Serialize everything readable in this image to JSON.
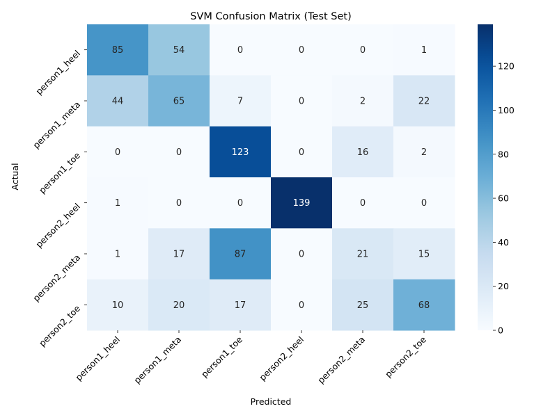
{
  "chart_data": {
    "type": "heatmap",
    "title": "SVM Confusion Matrix (Test Set)",
    "xlabel": "Predicted",
    "ylabel": "Actual",
    "x_categories": [
      "person1_heel",
      "person1_meta",
      "person1_toe",
      "person2_heel",
      "person2_meta",
      "person2_toe"
    ],
    "y_categories": [
      "person1_heel",
      "person1_meta",
      "person1_toe",
      "person2_heel",
      "person2_meta",
      "person2_toe"
    ],
    "values": [
      [
        85,
        54,
        0,
        0,
        0,
        1
      ],
      [
        44,
        65,
        7,
        0,
        2,
        22
      ],
      [
        0,
        0,
        123,
        0,
        16,
        2
      ],
      [
        1,
        0,
        0,
        139,
        0,
        0
      ],
      [
        1,
        17,
        87,
        0,
        21,
        15
      ],
      [
        10,
        20,
        17,
        0,
        25,
        68
      ]
    ],
    "colormap": "Blues",
    "color_range": [
      0,
      139
    ],
    "colorbar_ticks": [
      0,
      20,
      40,
      60,
      80,
      100,
      120
    ],
    "annotations": true,
    "tick_label_rotation_deg": 45
  }
}
